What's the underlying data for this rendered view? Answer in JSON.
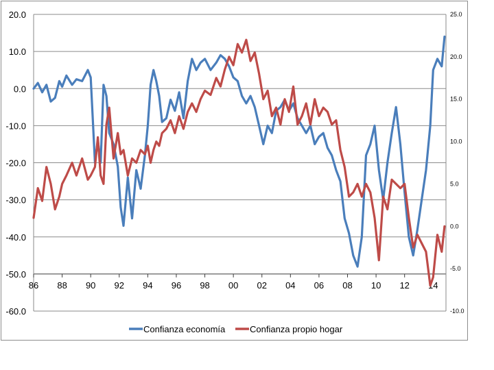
{
  "chart_data": {
    "type": "line",
    "title": "",
    "xlabel": "",
    "ylabel": "",
    "x_range": [
      1986,
      2014.9
    ],
    "x_ticks": [
      1986,
      1988,
      1990,
      1992,
      1994,
      1996,
      1998,
      2000,
      2002,
      2004,
      2006,
      2008,
      2010,
      2012,
      2014
    ],
    "x_tick_labels": [
      "86",
      "88",
      "90",
      "92",
      "94",
      "96",
      "98",
      "00",
      "02",
      "04",
      "06",
      "08",
      "10",
      "12",
      "14"
    ],
    "y_left": {
      "min": -60,
      "max": 20,
      "ticks": [
        20,
        10,
        0,
        -10,
        -20,
        -30,
        -40,
        -50,
        -60
      ],
      "tick_labels": [
        "20.0",
        "10.0",
        "0.0",
        "-10.0",
        "-20.0",
        "-30.0",
        "-40.0",
        "-50.0",
        "-60.0"
      ]
    },
    "y_right": {
      "min": -10,
      "max": 25,
      "ticks": [
        25,
        20,
        15,
        10,
        5,
        0,
        -5,
        -10
      ],
      "tick_labels": [
        "25.0",
        "20.0",
        "15.0",
        "10.0",
        "5.0",
        "0.0",
        "-5.0",
        "-10.0"
      ]
    },
    "grid": true,
    "legend_position": "bottom",
    "series": [
      {
        "name": "Confianza economía",
        "axis": "left",
        "color": "#4a7ebb",
        "x": [
          1986.0,
          1986.3,
          1986.6,
          1986.9,
          1987.2,
          1987.5,
          1987.8,
          1988.0,
          1988.3,
          1988.7,
          1989.0,
          1989.4,
          1989.8,
          1990.0,
          1990.3,
          1990.5,
          1990.7,
          1990.9,
          1991.1,
          1991.3,
          1991.6,
          1991.9,
          1992.1,
          1992.3,
          1992.6,
          1992.9,
          1993.2,
          1993.5,
          1993.8,
          1994.0,
          1994.2,
          1994.4,
          1994.6,
          1994.8,
          1995.0,
          1995.3,
          1995.6,
          1995.9,
          1996.2,
          1996.5,
          1996.8,
          1997.1,
          1997.4,
          1997.7,
          1998.0,
          1998.4,
          1998.8,
          1999.1,
          1999.4,
          1999.7,
          2000.0,
          2000.3,
          2000.6,
          2000.9,
          2001.2,
          2001.5,
          2001.8,
          2002.1,
          2002.4,
          2002.7,
          2003.0,
          2003.3,
          2003.6,
          2003.9,
          2004.2,
          2004.5,
          2004.8,
          2005.1,
          2005.4,
          2005.7,
          2006.0,
          2006.3,
          2006.6,
          2006.9,
          2007.2,
          2007.5,
          2007.8,
          2008.1,
          2008.4,
          2008.7,
          2009.0,
          2009.3,
          2009.6,
          2009.9,
          2010.2,
          2010.5,
          2010.8,
          2011.1,
          2011.4,
          2011.7,
          2012.0,
          2012.3,
          2012.6,
          2012.9,
          2013.2,
          2013.5,
          2013.8,
          2014.0,
          2014.3,
          2014.6,
          2014.8
        ],
        "y": [
          0.0,
          1.5,
          -1.0,
          1.0,
          -3.5,
          -2.5,
          2.0,
          0.5,
          3.5,
          1.0,
          2.5,
          2.0,
          5.0,
          3.0,
          -20.0,
          -14.0,
          -20.0,
          1.0,
          -2.0,
          -12.0,
          -15.0,
          -21.0,
          -32.0,
          -37.0,
          -24.0,
          -35.0,
          -22.0,
          -27.0,
          -18.0,
          -10.0,
          1.0,
          5.0,
          2.0,
          -2.0,
          -9.0,
          -8.0,
          -3.0,
          -6.0,
          -1.0,
          -8.0,
          2.0,
          8.0,
          5.0,
          7.0,
          8.0,
          5.0,
          7.0,
          9.0,
          8.0,
          6.0,
          3.0,
          2.0,
          -2.0,
          -4.0,
          -2.0,
          -5.0,
          -10.0,
          -15.0,
          -10.0,
          -12.0,
          -6.0,
          -5.0,
          -3.0,
          -6.0,
          -4.0,
          -8.0,
          -10.0,
          -12.0,
          -10.0,
          -15.0,
          -13.0,
          -12.0,
          -16.0,
          -18.0,
          -22.0,
          -25.0,
          -35.0,
          -39.0,
          -45.0,
          -48.0,
          -40.0,
          -18.0,
          -15.0,
          -10.0,
          -22.0,
          -30.0,
          -20.0,
          -12.0,
          -5.0,
          -15.0,
          -28.0,
          -40.0,
          -45.0,
          -38.0,
          -30.0,
          -22.0,
          -10.0,
          5.0,
          8.0,
          6.0,
          14.0
        ]
      },
      {
        "name": "Confianza propio hogar",
        "axis": "right",
        "color": "#be4b48",
        "x": [
          1986.0,
          1986.3,
          1986.6,
          1986.9,
          1987.2,
          1987.5,
          1987.8,
          1988.0,
          1988.3,
          1988.7,
          1989.0,
          1989.4,
          1989.8,
          1990.0,
          1990.3,
          1990.5,
          1990.7,
          1990.9,
          1991.1,
          1991.3,
          1991.6,
          1991.9,
          1992.1,
          1992.3,
          1992.6,
          1992.9,
          1993.2,
          1993.5,
          1993.8,
          1994.0,
          1994.2,
          1994.4,
          1994.6,
          1994.8,
          1995.0,
          1995.3,
          1995.6,
          1995.9,
          1996.2,
          1996.5,
          1996.8,
          1997.1,
          1997.4,
          1997.7,
          1998.0,
          1998.4,
          1998.8,
          1999.1,
          1999.4,
          1999.7,
          2000.0,
          2000.3,
          2000.6,
          2000.9,
          2001.2,
          2001.5,
          2001.8,
          2002.1,
          2002.4,
          2002.7,
          2003.0,
          2003.3,
          2003.6,
          2003.9,
          2004.2,
          2004.5,
          2004.8,
          2005.1,
          2005.4,
          2005.7,
          2006.0,
          2006.3,
          2006.6,
          2006.9,
          2007.2,
          2007.5,
          2007.8,
          2008.1,
          2008.4,
          2008.7,
          2009.0,
          2009.3,
          2009.6,
          2009.9,
          2010.2,
          2010.5,
          2010.8,
          2011.1,
          2011.4,
          2011.7,
          2012.0,
          2012.3,
          2012.6,
          2012.9,
          2013.2,
          2013.5,
          2013.8,
          2014.0,
          2014.3,
          2014.6,
          2014.8
        ],
        "y": [
          1.0,
          4.5,
          3.0,
          7.0,
          5.0,
          2.0,
          3.5,
          5.0,
          6.0,
          7.5,
          6.0,
          8.0,
          5.5,
          6.0,
          7.0,
          10.5,
          6.0,
          5.0,
          12.0,
          14.0,
          8.0,
          11.0,
          8.5,
          9.0,
          6.0,
          8.0,
          7.5,
          9.0,
          8.5,
          9.5,
          7.5,
          9.0,
          10.0,
          9.5,
          11.0,
          11.5,
          12.5,
          11.0,
          13.0,
          11.5,
          13.5,
          14.5,
          13.5,
          15.0,
          16.0,
          15.5,
          17.5,
          16.5,
          18.5,
          20.0,
          19.0,
          21.5,
          20.5,
          22.0,
          19.5,
          20.5,
          18.0,
          15.0,
          16.0,
          13.0,
          14.0,
          12.0,
          15.0,
          13.5,
          16.5,
          12.0,
          13.0,
          14.5,
          12.0,
          15.0,
          13.0,
          14.0,
          13.5,
          12.0,
          12.5,
          9.0,
          7.0,
          3.5,
          4.0,
          5.0,
          3.5,
          5.0,
          4.0,
          1.0,
          -4.0,
          3.5,
          2.0,
          5.5,
          5.0,
          4.5,
          5.0,
          1.0,
          -2.5,
          -1.0,
          -2.0,
          -3.0,
          -7.0,
          -6.0,
          -1.0,
          -3.0,
          0.0
        ]
      }
    ]
  }
}
